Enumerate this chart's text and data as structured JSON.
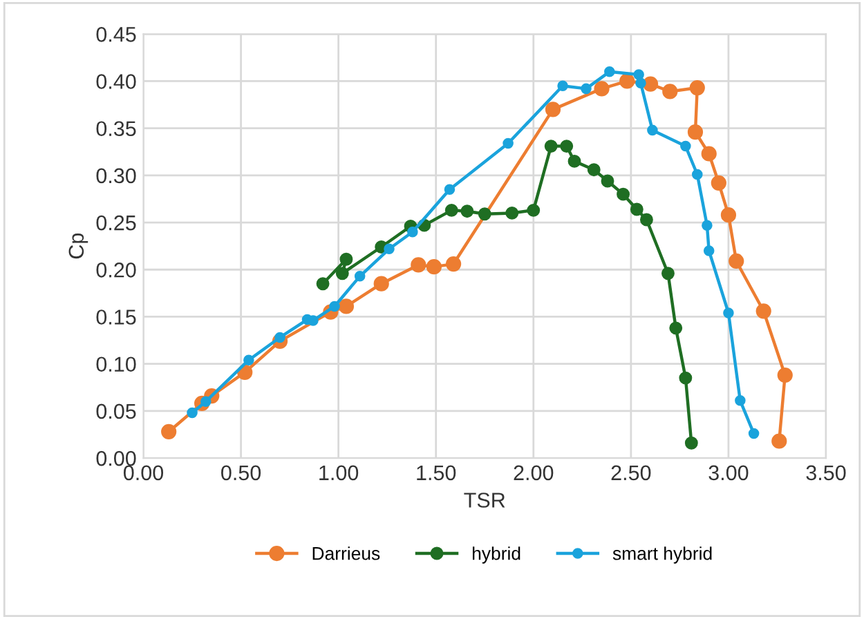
{
  "chart_data": {
    "type": "line",
    "xlabel": "TSR",
    "ylabel": "Cp",
    "xlim": [
      0,
      3.5
    ],
    "xticks": [
      {
        "value": 0,
        "label": "0.00"
      },
      {
        "value": 0.5,
        "label": "0.50"
      },
      {
        "value": 1,
        "label": "1.00"
      },
      {
        "value": 1.5,
        "label": "1.50"
      },
      {
        "value": 2,
        "label": "2.00"
      },
      {
        "value": 2.5,
        "label": "2.50"
      },
      {
        "value": 3,
        "label": "3.00"
      },
      {
        "value": 3.5,
        "label": "3.50"
      }
    ],
    "ylim": [
      0,
      0.45
    ],
    "yticks": [
      {
        "value": 0,
        "label": "0.00"
      },
      {
        "value": 0.05,
        "label": "0.05"
      },
      {
        "value": 0.1,
        "label": "0.10"
      },
      {
        "value": 0.15,
        "label": "0.15"
      },
      {
        "value": 0.2,
        "label": "0.20"
      },
      {
        "value": 0.25,
        "label": "0.25"
      },
      {
        "value": 0.3,
        "label": "0.30"
      },
      {
        "value": 0.35,
        "label": "0.35"
      },
      {
        "value": 0.4,
        "label": "0.40"
      },
      {
        "value": 0.45,
        "label": "0.45"
      }
    ],
    "grid": true,
    "legend": "bottom",
    "marker": "circle",
    "line_style": "solid",
    "series": [
      {
        "name": "Darrieus",
        "color": "#ed7d31",
        "x": [
          0.13,
          0.3,
          0.35,
          0.52,
          0.7,
          0.96,
          1.04,
          1.22,
          1.41,
          1.49,
          1.59,
          2.1,
          2.35,
          2.48,
          2.6,
          2.7,
          2.84,
          2.83,
          2.9,
          2.95,
          3.0,
          3.04,
          3.18,
          3.29,
          3.26
        ],
        "values": [
          0.028,
          0.058,
          0.066,
          0.091,
          0.124,
          0.155,
          0.161,
          0.185,
          0.205,
          0.203,
          0.206,
          0.37,
          0.392,
          0.4,
          0.397,
          0.389,
          0.393,
          0.346,
          0.323,
          0.292,
          0.258,
          0.209,
          0.156,
          0.088,
          0.018
        ]
      },
      {
        "name": "hybrid",
        "color": "#1f6e23",
        "x": [
          0.92,
          1.04,
          1.02,
          1.22,
          1.37,
          1.44,
          1.58,
          1.66,
          1.75,
          1.89,
          2.0,
          2.09,
          2.17,
          2.21,
          2.31,
          2.38,
          2.46,
          2.53,
          2.58,
          2.69,
          2.73,
          2.78,
          2.81
        ],
        "values": [
          0.185,
          0.211,
          0.196,
          0.224,
          0.246,
          0.247,
          0.263,
          0.262,
          0.259,
          0.26,
          0.263,
          0.331,
          0.331,
          0.315,
          0.306,
          0.294,
          0.28,
          0.264,
          0.253,
          0.196,
          0.138,
          0.085,
          0.016
        ]
      },
      {
        "name": "smart hybrid",
        "color": "#1aa3dc",
        "x": [
          0.25,
          0.32,
          0.54,
          0.7,
          0.84,
          0.87,
          0.98,
          1.11,
          1.26,
          1.38,
          1.57,
          1.87,
          2.15,
          2.27,
          2.39,
          2.54,
          2.55,
          2.61,
          2.78,
          2.84,
          2.89,
          2.9,
          3.0,
          3.06,
          3.13
        ],
        "values": [
          0.048,
          0.06,
          0.104,
          0.128,
          0.147,
          0.146,
          0.161,
          0.193,
          0.222,
          0.24,
          0.285,
          0.334,
          0.395,
          0.392,
          0.41,
          0.407,
          0.398,
          0.348,
          0.331,
          0.301,
          0.247,
          0.22,
          0.154,
          0.061,
          0.026
        ]
      }
    ]
  }
}
